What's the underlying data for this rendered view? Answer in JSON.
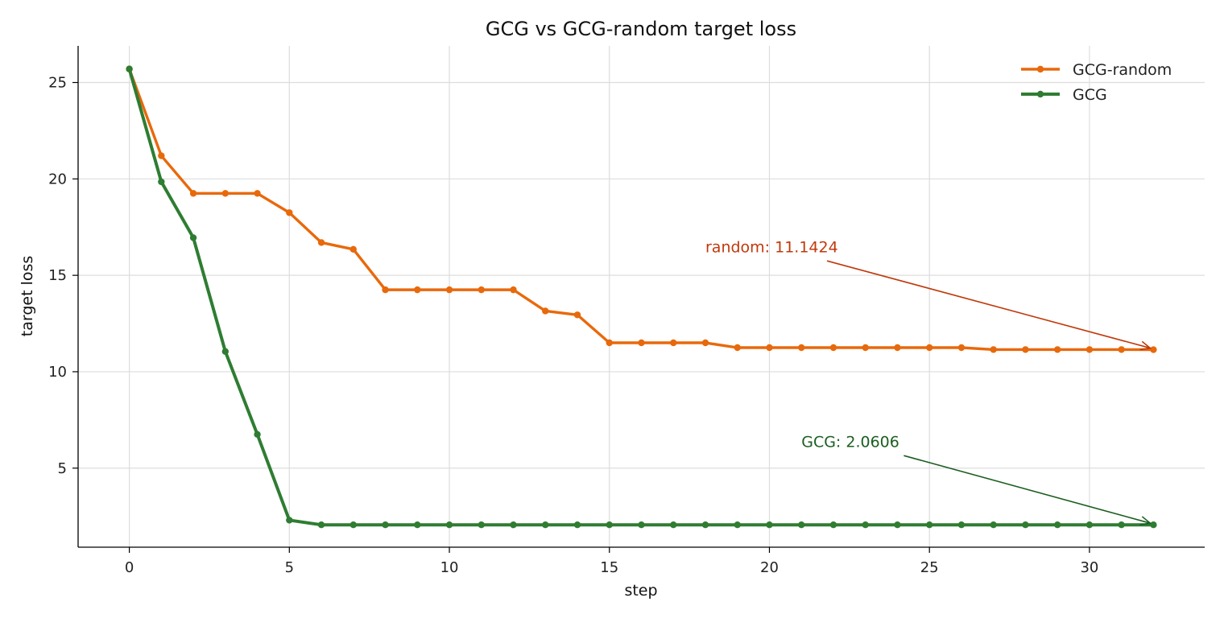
{
  "chart_data": {
    "type": "line",
    "title": "GCG vs GCG-random target loss",
    "xlabel": "step",
    "ylabel": "target loss",
    "xlim": [
      -1.6,
      33.6
    ],
    "ylim": [
      0.9,
      26.9
    ],
    "x_ticks": [
      0,
      5,
      10,
      15,
      20,
      25,
      30
    ],
    "y_ticks": [
      5,
      10,
      15,
      20,
      25
    ],
    "grid": true,
    "legend_position": "top-right",
    "x": [
      0,
      1,
      2,
      3,
      4,
      5,
      6,
      7,
      8,
      9,
      10,
      11,
      12,
      13,
      14,
      15,
      16,
      17,
      18,
      19,
      20,
      21,
      22,
      23,
      24,
      25,
      26,
      27,
      28,
      29,
      30,
      31,
      32
    ],
    "series": [
      {
        "name": "GCG-random",
        "color": "#e8690b",
        "values": [
          25.7,
          21.2,
          19.25,
          19.25,
          19.25,
          18.25,
          16.7,
          16.35,
          14.25,
          14.25,
          14.25,
          14.25,
          14.25,
          13.15,
          12.95,
          11.5,
          11.5,
          11.5,
          11.5,
          11.25,
          11.25,
          11.25,
          11.25,
          11.25,
          11.25,
          11.25,
          11.25,
          11.15,
          11.15,
          11.15,
          11.15,
          11.15,
          11.1424
        ]
      },
      {
        "name": "GCG",
        "color": "#2e7d32",
        "values": [
          25.7,
          19.85,
          16.95,
          11.05,
          6.75,
          2.3,
          2.06,
          2.06,
          2.06,
          2.06,
          2.06,
          2.06,
          2.06,
          2.06,
          2.06,
          2.06,
          2.06,
          2.06,
          2.06,
          2.06,
          2.06,
          2.06,
          2.06,
          2.06,
          2.06,
          2.06,
          2.06,
          2.06,
          2.06,
          2.06,
          2.06,
          2.06,
          2.0606
        ]
      }
    ],
    "annotations": [
      {
        "text": "random: 11.1424",
        "color": "#c0390b",
        "text_x": 18,
        "text_y": 16.2,
        "arrow_from": [
          21.8,
          15.75
        ],
        "arrow_to": [
          32,
          11.1424
        ]
      },
      {
        "text": "GCG: 2.0606",
        "color": "#1b5e20",
        "text_x": 21,
        "text_y": 6.1,
        "arrow_from": [
          24.2,
          5.65
        ],
        "arrow_to": [
          32,
          2.0606
        ]
      }
    ]
  }
}
